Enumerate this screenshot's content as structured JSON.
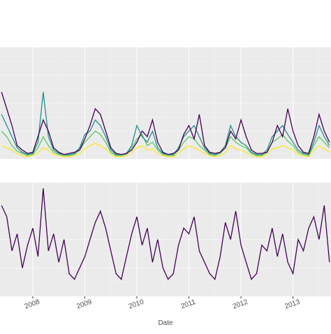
{
  "chart_data": [
    {
      "type": "line",
      "grid": true,
      "x": [
        2007.4,
        2007.5,
        2007.6,
        2007.7,
        2007.8,
        2007.9,
        2008.0,
        2008.1,
        2008.2,
        2008.3,
        2008.4,
        2008.5,
        2008.6,
        2008.7,
        2008.8,
        2008.9,
        2009.0,
        2009.1,
        2009.2,
        2009.3,
        2009.4,
        2009.5,
        2009.6,
        2009.7,
        2009.8,
        2009.9,
        2010.0,
        2010.1,
        2010.2,
        2010.3,
        2010.4,
        2010.5,
        2010.6,
        2010.7,
        2010.8,
        2010.9,
        2011.0,
        2011.1,
        2011.2,
        2011.3,
        2011.4,
        2011.5,
        2011.6,
        2011.7,
        2011.8,
        2011.9,
        2012.0,
        2012.1,
        2012.2,
        2012.3,
        2012.4,
        2012.5,
        2012.6,
        2012.7,
        2012.8,
        2012.9,
        2013.0,
        2013.1,
        2013.2,
        2013.3,
        2013.4,
        2013.5,
        2013.6,
        2013.7
      ],
      "xlim": [
        2007.37,
        2013.73
      ],
      "ylim": [
        0,
        100
      ],
      "series": [
        {
          "color": "#fde725",
          "values": [
            12,
            10,
            8,
            5,
            3,
            2,
            3,
            6,
            10,
            8,
            4,
            3,
            2,
            2,
            3,
            5,
            9,
            12,
            14,
            12,
            9,
            4,
            2,
            2,
            3,
            6,
            10,
            12,
            8,
            9,
            5,
            3,
            2,
            2,
            5,
            9,
            12,
            10,
            8,
            5,
            3,
            2,
            3,
            6,
            12,
            9,
            8,
            6,
            3,
            2,
            2,
            4,
            9,
            10,
            12,
            10,
            8,
            4,
            3,
            2,
            8,
            12,
            9,
            6
          ]
        },
        {
          "color": "#5ec962",
          "values": [
            25,
            20,
            12,
            7,
            5,
            3,
            4,
            10,
            20,
            12,
            6,
            4,
            3,
            3,
            4,
            8,
            15,
            20,
            25,
            22,
            15,
            6,
            3,
            3,
            4,
            10,
            18,
            22,
            12,
            15,
            8,
            4,
            3,
            3,
            8,
            15,
            20,
            18,
            12,
            8,
            4,
            3,
            5,
            10,
            20,
            15,
            12,
            10,
            5,
            3,
            3,
            6,
            15,
            18,
            22,
            16,
            12,
            6,
            4,
            3,
            12,
            20,
            15,
            10
          ]
        },
        {
          "color": "#21908c",
          "values": [
            40,
            30,
            20,
            10,
            6,
            4,
            5,
            15,
            60,
            20,
            8,
            5,
            4,
            4,
            5,
            10,
            22,
            25,
            35,
            30,
            20,
            8,
            4,
            4,
            5,
            12,
            30,
            20,
            15,
            25,
            10,
            5,
            4,
            4,
            10,
            20,
            25,
            30,
            20,
            10,
            5,
            4,
            6,
            12,
            30,
            20,
            15,
            12,
            6,
            4,
            4,
            8,
            20,
            25,
            30,
            22,
            15,
            8,
            5,
            4,
            15,
            30,
            20,
            12
          ]
        },
        {
          "color": "#440154",
          "values": [
            60,
            45,
            30,
            12,
            8,
            5,
            6,
            20,
            35,
            25,
            10,
            6,
            4,
            5,
            6,
            8,
            18,
            30,
            45,
            40,
            25,
            10,
            5,
            4,
            5,
            8,
            15,
            25,
            20,
            35,
            15,
            6,
            4,
            5,
            8,
            22,
            30,
            18,
            40,
            12,
            6,
            5,
            6,
            10,
            25,
            18,
            35,
            20,
            8,
            5,
            5,
            6,
            15,
            30,
            20,
            45,
            25,
            12,
            6,
            5,
            20,
            40,
            25,
            15
          ]
        }
      ]
    },
    {
      "type": "line",
      "grid": true,
      "xlabel": "Date",
      "x": [
        2007.4,
        2007.5,
        2007.6,
        2007.7,
        2007.8,
        2007.9,
        2008.0,
        2008.1,
        2008.2,
        2008.3,
        2008.4,
        2008.5,
        2008.6,
        2008.7,
        2008.8,
        2008.9,
        2009.0,
        2009.1,
        2009.2,
        2009.3,
        2009.4,
        2009.5,
        2009.6,
        2009.7,
        2009.8,
        2009.9,
        2010.0,
        2010.1,
        2010.2,
        2010.3,
        2010.4,
        2010.5,
        2010.6,
        2010.7,
        2010.8,
        2010.9,
        2011.0,
        2011.1,
        2011.2,
        2011.3,
        2011.4,
        2011.5,
        2011.6,
        2011.7,
        2011.8,
        2011.9,
        2012.0,
        2012.1,
        2012.2,
        2012.3,
        2012.4,
        2012.5,
        2012.6,
        2012.7,
        2012.8,
        2012.9,
        2013.0,
        2013.1,
        2013.2,
        2013.3,
        2013.4,
        2013.5,
        2013.6,
        2013.7
      ],
      "xlim": [
        2007.37,
        2013.73
      ],
      "xticks": [
        2008,
        2009,
        2010,
        2011,
        2012,
        2013
      ],
      "ylim": [
        0,
        100
      ],
      "series": [
        {
          "color": "#440154",
          "values": [
            80,
            70,
            40,
            55,
            25,
            45,
            60,
            35,
            95,
            40,
            55,
            30,
            50,
            20,
            15,
            25,
            35,
            50,
            65,
            75,
            60,
            40,
            20,
            15,
            35,
            55,
            70,
            45,
            60,
            30,
            50,
            25,
            15,
            20,
            45,
            60,
            55,
            70,
            40,
            30,
            20,
            15,
            35,
            65,
            50,
            75,
            45,
            30,
            15,
            20,
            45,
            40,
            60,
            35,
            55,
            30,
            20,
            50,
            40,
            60,
            70,
            50,
            80,
            30
          ]
        }
      ]
    }
  ]
}
